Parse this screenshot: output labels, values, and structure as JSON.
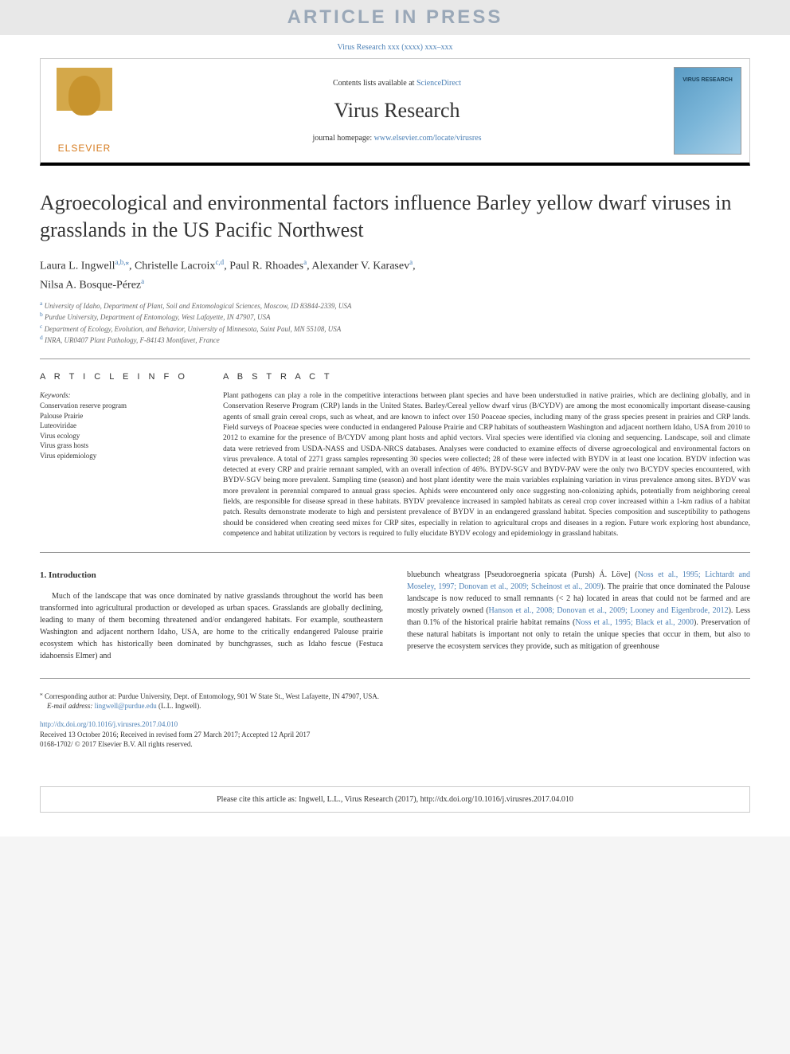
{
  "banner": "ARTICLE IN PRESS",
  "citation_top": "Virus Research xxx (xxxx) xxx–xxx",
  "header": {
    "contents_text": "Contents lists available at ",
    "contents_link": "ScienceDirect",
    "journal_name": "Virus Research",
    "homepage_text": "journal homepage: ",
    "homepage_link": "www.elsevier.com/locate/virusres",
    "publisher_logo_text": "ELSEVIER"
  },
  "article": {
    "title": "Agroecological and environmental factors influence Barley yellow dwarf viruses in grasslands in the US Pacific Northwest",
    "authors_line1": "Laura L. Ingwell",
    "authors_line1_sup": "a,b,",
    "corresponding_marker": "⁎",
    "authors_line1_cont": ", Christelle Lacroix",
    "authors_line1_sup2": "c,d",
    "authors_line1_cont2": ", Paul R. Rhoades",
    "authors_line1_sup3": "a",
    "authors_line1_cont3": ", Alexander V. Karasev",
    "authors_line1_sup4": "a",
    "authors_line2": "Nilsa A. Bosque-Pérez",
    "authors_line2_sup": "a",
    "affiliations": {
      "a": "University of Idaho, Department of Plant, Soil and Entomological Sciences, Moscow, ID 83844-2339, USA",
      "b": "Purdue University, Department of Entomology, West Lafayette, IN 47907, USA",
      "c": "Department of Ecology, Evolution, and Behavior, University of Minnesota, Saint Paul, MN 55108, USA",
      "d": "INRA, UR0407 Plant Pathology, F-84143 Montfavet, France"
    }
  },
  "info": {
    "header": "A R T I C L E  I N F O",
    "keywords_label": "Keywords:",
    "keywords": [
      "Conservation reserve program",
      "Palouse Prairie",
      "Luteoviridae",
      "Virus ecology",
      "Virus grass hosts",
      "Virus epidemiology"
    ]
  },
  "abstract": {
    "header": "A B S T R A C T",
    "text": "Plant pathogens can play a role in the competitive interactions between plant species and have been understudied in native prairies, which are declining globally, and in Conservation Reserve Program (CRP) lands in the United States. Barley/Cereal yellow dwarf virus (B/CYDV) are among the most economically important disease-causing agents of small grain cereal crops, such as wheat, and are known to infect over 150 Poaceae species, including many of the grass species present in prairies and CRP lands. Field surveys of Poaceae species were conducted in endangered Palouse Prairie and CRP habitats of southeastern Washington and adjacent northern Idaho, USA from 2010 to 2012 to examine for the presence of B/CYDV among plant hosts and aphid vectors. Viral species were identified via cloning and sequencing. Landscape, soil and climate data were retrieved from USDA-NASS and USDA-NRCS databases. Analyses were conducted to examine effects of diverse agroecological and environmental factors on virus prevalence. A total of 2271 grass samples representing 30 species were collected; 28 of these were infected with BYDV in at least one location. BYDV infection was detected at every CRP and prairie remnant sampled, with an overall infection of 46%. BYDV-SGV and BYDV-PAV were the only two B/CYDV species encountered, with BYDV-SGV being more prevalent. Sampling time (season) and host plant identity were the main variables explaining variation in virus prevalence among sites. BYDV was more prevalent in perennial compared to annual grass species. Aphids were encountered only once suggesting non-colonizing aphids, potentially from neighboring cereal fields, are responsible for disease spread in these habitats. BYDV prevalence increased in sampled habitats as cereal crop cover increased within a 1-km radius of a habitat patch. Results demonstrate moderate to high and persistent prevalence of BYDV in an endangered grassland habitat. Species composition and susceptibility to pathogens should be considered when creating seed mixes for CRP sites, especially in relation to agricultural crops and diseases in a region. Future work exploring host abundance, competence and habitat utilization by vectors is required to fully elucidate BYDV ecology and epidemiology in grassland habitats."
  },
  "intro": {
    "header": "1. Introduction",
    "col1": "Much of the landscape that was once dominated by native grasslands throughout the world has been transformed into agricultural production or developed as urban spaces. Grasslands are globally declining, leading to many of them becoming threatened and/or endangered habitats. For example, southeastern Washington and adjacent northern Idaho, USA, are home to the critically endangered Palouse prairie ecosystem which has historically been dominated by bunchgrasses, such as Idaho fescue (Festuca idahoensis Elmer) and",
    "col2_pre": "bluebunch wheatgrass [Pseudoroegneria spicata (Pursh) Á. Löve] (",
    "col2_link1": "Noss et al., 1995; Lichtardt and Moseley, 1997; Donovan et al., 2009; Scheinost et al., 2009",
    "col2_mid1": "). The prairie that once dominated the Palouse landscape is now reduced to small remnants (< 2 ha) located in areas that could not be farmed and are mostly privately owned (",
    "col2_link2": "Hanson et al., 2008; Donovan et al., 2009; Looney and Eigenbrode, 2012",
    "col2_mid2": "). Less than 0.1% of the historical prairie habitat remains (",
    "col2_link3": "Noss et al., 1995; Black et al., 2000",
    "col2_end": "). Preservation of these natural habitats is important not only to retain the unique species that occur in them, but also to preserve the ecosystem services they provide, such as mitigation of greenhouse"
  },
  "footer": {
    "corresponding_text": "Corresponding author at: Purdue University, Dept. of Entomology, 901 W State St., West Lafayette, IN 47907, USA.",
    "email_label": "E-mail address: ",
    "email": "lingwell@purdue.edu",
    "email_suffix": " (L.L. Ingwell).",
    "doi": "http://dx.doi.org/10.1016/j.virusres.2017.04.010",
    "received": "Received 13 October 2016; Received in revised form 27 March 2017; Accepted 12 April 2017",
    "copyright": "0168-1702/ © 2017 Elsevier B.V. All rights reserved."
  },
  "cite_box": "Please cite this article as: Ingwell, L.L., Virus Research (2017), http://dx.doi.org/10.1016/j.virusres.2017.04.010"
}
